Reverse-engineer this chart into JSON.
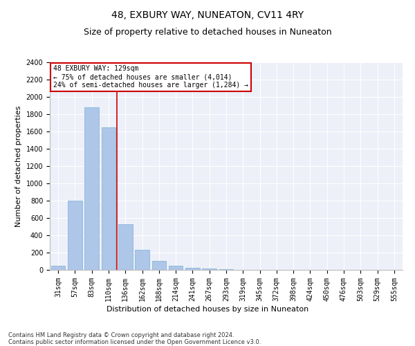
{
  "title": "48, EXBURY WAY, NUNEATON, CV11 4RY",
  "subtitle": "Size of property relative to detached houses in Nuneaton",
  "xlabel": "Distribution of detached houses by size in Nuneaton",
  "ylabel": "Number of detached properties",
  "categories": [
    "31sqm",
    "57sqm",
    "83sqm",
    "110sqm",
    "136sqm",
    "162sqm",
    "188sqm",
    "214sqm",
    "241sqm",
    "267sqm",
    "293sqm",
    "319sqm",
    "345sqm",
    "372sqm",
    "398sqm",
    "424sqm",
    "450sqm",
    "476sqm",
    "503sqm",
    "529sqm",
    "555sqm"
  ],
  "values": [
    50,
    800,
    1880,
    1650,
    530,
    235,
    105,
    45,
    25,
    15,
    10,
    0,
    0,
    0,
    0,
    0,
    0,
    0,
    0,
    0,
    0
  ],
  "bar_color": "#aec6e8",
  "bar_edge_color": "#7bafd4",
  "vline_x_index": 3.5,
  "vline_color": "#cc0000",
  "ylim": [
    0,
    2400
  ],
  "yticks": [
    0,
    200,
    400,
    600,
    800,
    1000,
    1200,
    1400,
    1600,
    1800,
    2000,
    2200,
    2400
  ],
  "annotation_title": "48 EXBURY WAY: 129sqm",
  "annotation_line1": "← 75% of detached houses are smaller (4,014)",
  "annotation_line2": "24% of semi-detached houses are larger (1,284) →",
  "annotation_box_color": "#ffffff",
  "annotation_box_edgecolor": "#cc0000",
  "footer_line1": "Contains HM Land Registry data © Crown copyright and database right 2024.",
  "footer_line2": "Contains public sector information licensed under the Open Government Licence v3.0.",
  "bg_color": "#edf0f8",
  "title_fontsize": 10,
  "subtitle_fontsize": 9,
  "xlabel_fontsize": 8,
  "ylabel_fontsize": 8,
  "tick_fontsize": 7,
  "annotation_fontsize": 7,
  "footer_fontsize": 6
}
